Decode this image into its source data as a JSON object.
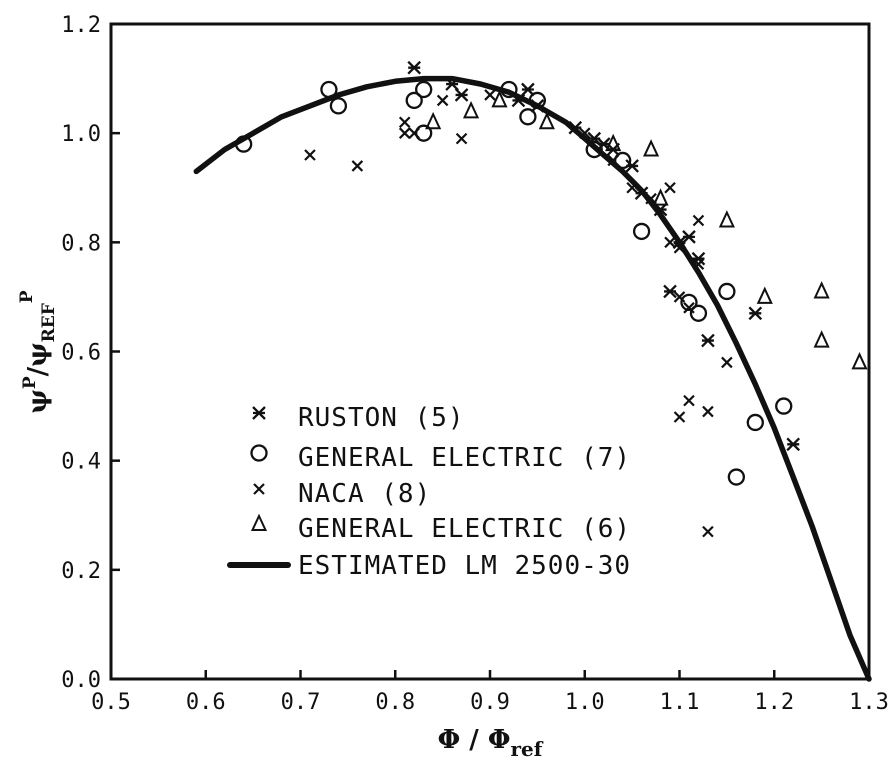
{
  "chart_data": {
    "type": "scatter",
    "title": "",
    "xlabel": "Φ / Φref",
    "ylabel": "ψP/ψREFP",
    "xlim": [
      0.5,
      1.3
    ],
    "ylim": [
      0.0,
      1.2
    ],
    "x_ticks": [
      "0.5",
      "0.6",
      "0.7",
      "0.8",
      "0.9",
      "1.0",
      "1.1",
      "1.2",
      "1.3"
    ],
    "y_ticks": [
      "0.0",
      "0.2",
      "0.4",
      "0.6",
      "0.8",
      "1.0",
      "1.2"
    ],
    "grid": false,
    "legend_position": "lower-left inside",
    "series": [
      {
        "name": "RUSTON (5)",
        "marker": "asterisk",
        "points": [
          [
            0.82,
            1.12
          ],
          [
            0.86,
            1.09
          ],
          [
            0.87,
            1.07
          ],
          [
            0.93,
            1.06
          ],
          [
            0.94,
            1.08
          ],
          [
            0.95,
            1.05
          ],
          [
            0.99,
            1.01
          ],
          [
            1.01,
            0.99
          ],
          [
            1.02,
            0.98
          ],
          [
            1.03,
            0.97
          ],
          [
            1.05,
            0.94
          ],
          [
            1.06,
            0.89
          ],
          [
            1.08,
            0.86
          ],
          [
            1.1,
            0.8
          ],
          [
            1.11,
            0.81
          ],
          [
            1.12,
            0.77
          ],
          [
            1.09,
            0.71
          ],
          [
            1.13,
            0.62
          ],
          [
            1.18,
            0.67
          ],
          [
            1.22,
            0.43
          ]
        ]
      },
      {
        "name": "GENERAL ELECTRIC (7)",
        "marker": "circle",
        "points": [
          [
            0.64,
            0.98
          ],
          [
            0.73,
            1.08
          ],
          [
            0.74,
            1.05
          ],
          [
            0.82,
            1.06
          ],
          [
            0.83,
            1.08
          ],
          [
            0.83,
            1.0
          ],
          [
            0.92,
            1.08
          ],
          [
            0.94,
            1.03
          ],
          [
            0.95,
            1.06
          ],
          [
            1.01,
            0.97
          ],
          [
            1.04,
            0.95
          ],
          [
            1.06,
            0.82
          ],
          [
            1.11,
            0.69
          ],
          [
            1.12,
            0.67
          ],
          [
            1.15,
            0.71
          ],
          [
            1.16,
            0.37
          ],
          [
            1.18,
            0.47
          ],
          [
            1.21,
            0.5
          ]
        ]
      },
      {
        "name": "NACA (8)",
        "marker": "x",
        "points": [
          [
            0.71,
            0.96
          ],
          [
            0.76,
            0.94
          ],
          [
            0.81,
            1.02
          ],
          [
            0.81,
            1.0
          ],
          [
            0.82,
            1.0
          ],
          [
            0.85,
            1.06
          ],
          [
            0.87,
            0.99
          ],
          [
            0.9,
            1.07
          ],
          [
            1.0,
            1.0
          ],
          [
            1.02,
            0.98
          ],
          [
            1.03,
            0.95
          ],
          [
            1.05,
            0.9
          ],
          [
            1.07,
            0.88
          ],
          [
            1.09,
            0.9
          ],
          [
            1.09,
            0.8
          ],
          [
            1.1,
            0.79
          ],
          [
            1.1,
            0.7
          ],
          [
            1.11,
            0.68
          ],
          [
            1.12,
            0.84
          ],
          [
            1.12,
            0.76
          ],
          [
            1.1,
            0.48
          ],
          [
            1.11,
            0.51
          ],
          [
            1.13,
            0.49
          ],
          [
            1.13,
            0.27
          ],
          [
            1.15,
            0.58
          ]
        ]
      },
      {
        "name": "GENERAL ELECTRIC (6)",
        "marker": "triangle",
        "points": [
          [
            0.84,
            1.02
          ],
          [
            0.88,
            1.04
          ],
          [
            0.91,
            1.06
          ],
          [
            0.96,
            1.02
          ],
          [
            1.03,
            0.98
          ],
          [
            1.07,
            0.97
          ],
          [
            1.08,
            0.88
          ],
          [
            1.15,
            0.84
          ],
          [
            1.19,
            0.7
          ],
          [
            1.25,
            0.71
          ],
          [
            1.25,
            0.62
          ],
          [
            1.29,
            0.58
          ]
        ]
      },
      {
        "name": "ESTIMATED LM 2500-30",
        "marker": "line",
        "x": [
          0.59,
          0.62,
          0.65,
          0.68,
          0.71,
          0.74,
          0.77,
          0.8,
          0.83,
          0.86,
          0.89,
          0.92,
          0.95,
          0.98,
          1.0,
          1.02,
          1.04,
          1.06,
          1.08,
          1.1,
          1.12,
          1.14,
          1.16,
          1.18,
          1.2,
          1.22,
          1.24,
          1.26,
          1.28,
          1.3
        ],
        "y": [
          0.93,
          0.97,
          1.0,
          1.03,
          1.05,
          1.07,
          1.085,
          1.095,
          1.1,
          1.1,
          1.09,
          1.075,
          1.05,
          1.02,
          0.99,
          0.96,
          0.93,
          0.895,
          0.85,
          0.8,
          0.745,
          0.685,
          0.615,
          0.54,
          0.46,
          0.37,
          0.28,
          0.18,
          0.08,
          0.0
        ]
      }
    ]
  }
}
